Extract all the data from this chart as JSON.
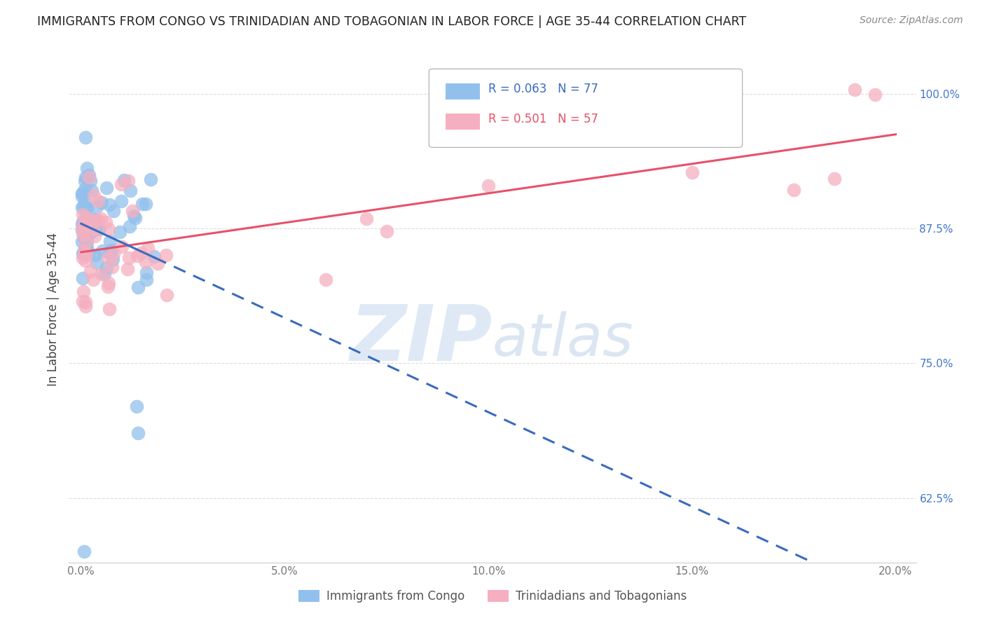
{
  "title": "IMMIGRANTS FROM CONGO VS TRINIDADIAN AND TOBAGONIAN IN LABOR FORCE | AGE 35-44 CORRELATION CHART",
  "source": "Source: ZipAtlas.com",
  "ylabel": "In Labor Force | Age 35-44",
  "legend_label1": "Immigrants from Congo",
  "legend_label2": "Trinidadians and Tobagonians",
  "R_congo": 0.063,
  "N_congo": 77,
  "R_tt": 0.501,
  "N_tt": 57,
  "color_congo": "#92c0ec",
  "color_tt": "#f5afc0",
  "color_line_congo": "#3a6bbf",
  "color_line_tt": "#e8516a",
  "xmin": 0.0,
  "xmax": 0.2,
  "ymin": 0.565,
  "ymax": 1.035,
  "yticks": [
    0.625,
    0.75,
    0.875,
    1.0
  ],
  "ytick_labels": [
    "62.5%",
    "75.0%",
    "87.5%",
    "100.0%"
  ],
  "xtick_labels": [
    "0.0%",
    "5.0%",
    "10.0%",
    "15.0%",
    "20.0%"
  ],
  "xtick_vals": [
    0.0,
    0.05,
    0.1,
    0.15,
    0.2
  ],
  "background_color": "#ffffff",
  "grid_color": "#dddddd",
  "watermark_zip_color": "#c8dcf0",
  "watermark_atlas_color": "#b8d0e8"
}
